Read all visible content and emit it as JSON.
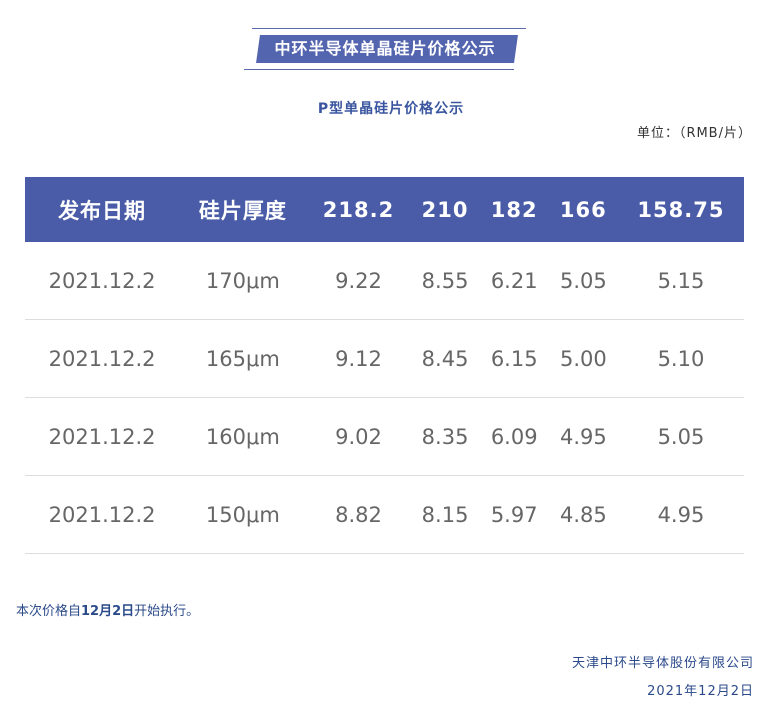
{
  "title": "中环半导体单晶硅片价格公示",
  "subtitle": "P型单晶硅片价格公示",
  "unit": "单位：（RMB/片）",
  "table": {
    "headers": [
      "发布日期",
      "硅片厚度",
      "218.2",
      "210",
      "182",
      "166",
      "158.75"
    ],
    "rows": [
      [
        "2021.12.2",
        "170μm",
        "9.22",
        "8.55",
        "6.21",
        "5.05",
        "5.15"
      ],
      [
        "2021.12.2",
        "165μm",
        "9.12",
        "8.45",
        "6.15",
        "5.00",
        "5.10"
      ],
      [
        "2021.12.2",
        "160μm",
        "9.02",
        "8.35",
        "6.09",
        "4.95",
        "5.05"
      ],
      [
        "2021.12.2",
        "150μm",
        "8.82",
        "8.15",
        "5.97",
        "4.85",
        "4.95"
      ]
    ]
  },
  "note": {
    "pre": "本次价格自",
    "bold": "12月2日",
    "post": "开始执行。"
  },
  "company": "天津中环半导体股份有限公司",
  "date": "2021年12月2日",
  "colors": {
    "header": "#4a5ca8",
    "text_blue": "#2b4a8a"
  }
}
